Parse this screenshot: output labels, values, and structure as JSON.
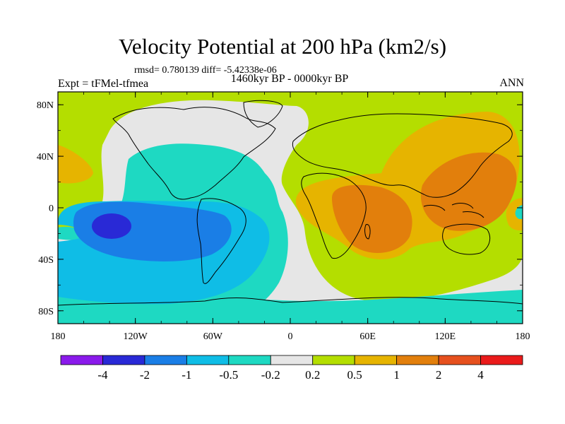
{
  "chart_data": {
    "type": "heatmap",
    "title": "Velocity Potential at 200 hPa (km2/s)",
    "stats": "rmsd= 0.780139 diff= -5.42338e-06",
    "left_label": "Expt = tFMel-tfmea",
    "center_label": "1460kyr BP - 0000kyr BP",
    "right_label": "ANN",
    "x_ticks": [
      "180",
      "120W",
      "60W",
      "0",
      "60E",
      "120E",
      "180"
    ],
    "y_ticks": [
      "80N",
      "40N",
      "0",
      "40S",
      "80S"
    ],
    "x_range": [
      -180,
      180
    ],
    "y_range": [
      -90,
      90
    ],
    "colorbar_levels": [
      "-4",
      "-2",
      "-1",
      "-0.5",
      "-0.2",
      "0.2",
      "0.5",
      "1",
      "2",
      "4"
    ],
    "colorbar_colors": [
      "#8a1aeb",
      "#2929d6",
      "#1a7ee6",
      "#0fbde6",
      "#1ed9c2",
      "#e6e6e6",
      "#b4de00",
      "#e6b400",
      "#e27f0c",
      "#e6501e",
      "#ea1b1b"
    ],
    "features": [
      {
        "name": "min-east-pacific",
        "lon": -135,
        "lat": -12,
        "value": -2.3
      },
      {
        "name": "max-indian-ocean",
        "lon": 60,
        "lat": -10,
        "value": 1.6
      },
      {
        "name": "max-west-pacific",
        "lon": 130,
        "lat": 5,
        "value": 1.5
      },
      {
        "name": "max-north-pacific-east",
        "lon": -170,
        "lat": 30,
        "value": 0.6
      }
    ]
  }
}
